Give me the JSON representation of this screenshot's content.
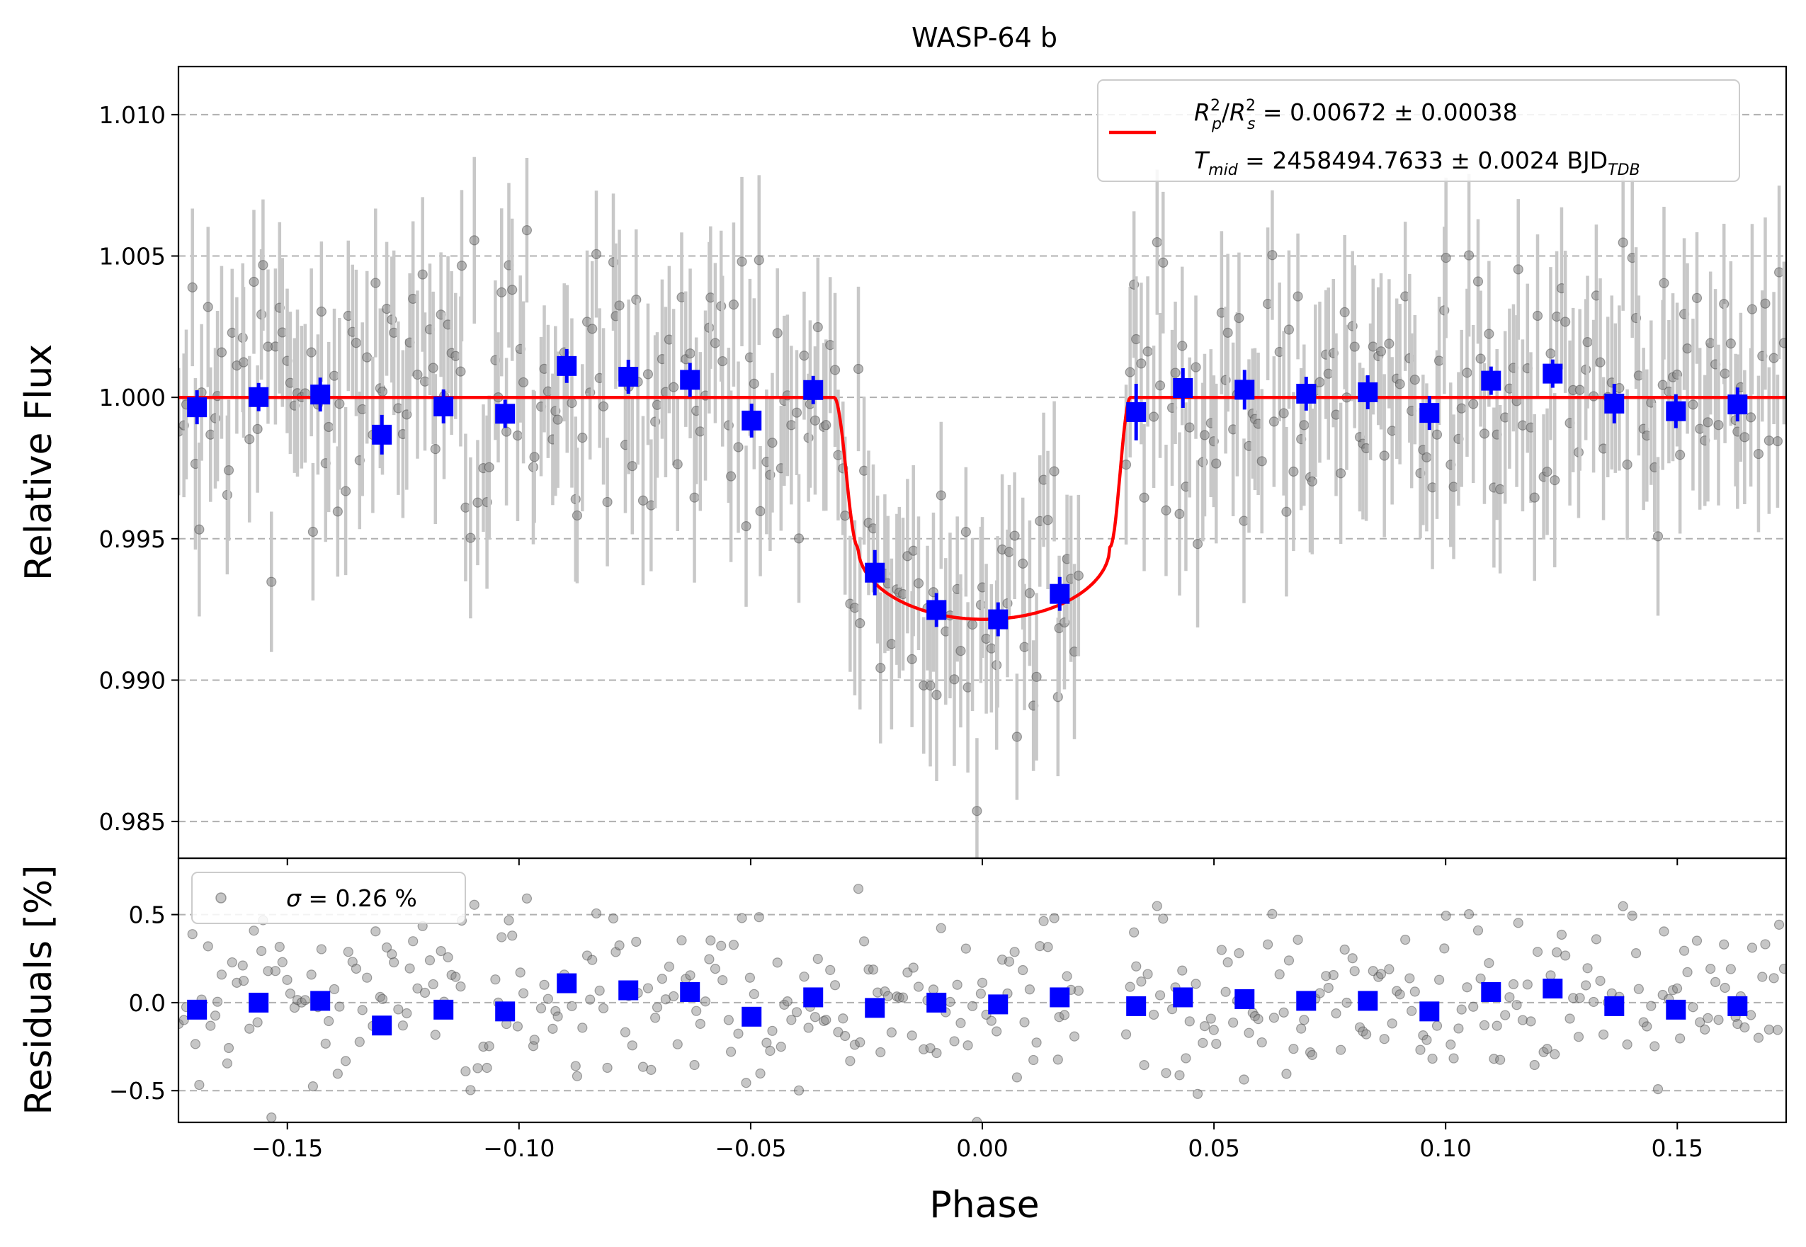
{
  "chart_data": [
    {
      "type": "scatter",
      "panel": "light-curve",
      "title": "WASP-64 b",
      "xlabel": "",
      "ylabel": "Relative Flux",
      "xlim": [
        -0.1735,
        0.1735
      ],
      "ylim": [
        0.9837,
        1.0117
      ],
      "xticks": [
        -0.15,
        -0.1,
        -0.05,
        0.0,
        0.05,
        0.1,
        0.15
      ],
      "yticks": [
        0.985,
        0.99,
        0.995,
        1.0,
        1.005,
        1.01
      ],
      "ytick_labels": [
        "0.985",
        "0.990",
        "0.995",
        "1.000",
        "1.005",
        "1.010"
      ],
      "grid": "horizontal dashed",
      "legend": {
        "placement": "top-right",
        "line_label_1": "R²p/R²s = 0.00672 ± 0.00038",
        "line_label_2": "Tmid = 2458494.7633 ± 0.0024 BJDTDB",
        "rp_base": "R",
        "rp_sup": "2",
        "rp_sub": "p",
        "slash": "/",
        "rs_base": "R",
        "rs_sup": "2",
        "rs_sub": "s",
        "rp_value": " = 0.00672 ± 0.00038",
        "tmid_base": "T",
        "tmid_sub": "mid",
        "tmid_value": " = 2458494.7633 ± 0.0024 BJD",
        "tmid_unit_sub": "TDB"
      },
      "model": {
        "name": "transit model",
        "color": "#ff0000",
        "baseline": 1.0,
        "depth_minimum": 0.99215,
        "ingress_start": -0.032,
        "ingress_end": -0.0268,
        "egress_start": 0.0275,
        "egress_end": 0.032
      },
      "binned": {
        "name": "binned data",
        "color": "#0000ff",
        "x": [
          -0.1695,
          -0.1562,
          -0.1429,
          -0.1296,
          -0.1163,
          -0.103,
          -0.0897,
          -0.0764,
          -0.0631,
          -0.0498,
          -0.0365,
          -0.0232,
          -0.0099,
          0.0034,
          0.0167,
          0.0332,
          0.0433,
          0.0566,
          0.0699,
          0.0832,
          0.0965,
          0.1098,
          0.1231,
          0.1364,
          0.1497,
          0.163
        ],
        "y": [
          0.99965,
          1.00001,
          1.0001,
          0.99868,
          0.99968,
          0.99942,
          1.00111,
          1.00073,
          1.00062,
          0.99918,
          1.00026,
          0.9938,
          0.99248,
          0.99215,
          0.99305,
          0.99948,
          1.00033,
          1.00027,
          1.00013,
          1.00018,
          0.99945,
          1.00059,
          1.00084,
          0.99978,
          0.99951,
          0.99975
        ],
        "yerr": [
          0.0006,
          0.0005,
          0.0006,
          0.0007,
          0.0006,
          0.0005,
          0.0006,
          0.0006,
          0.0006,
          0.0006,
          0.0005,
          0.0008,
          0.0006,
          0.0006,
          0.0006,
          0.001,
          0.0007,
          0.0007,
          0.0006,
          0.0006,
          0.0006,
          0.0005,
          0.0005,
          0.0007,
          0.0006,
          0.0006
        ]
      },
      "raw": {
        "name": "unbinned data",
        "color": "#808080",
        "note": "approximately 420 unbinned points, x from -0.1735 to 0.1735, typical error 0.0026, scatter sigma 0.26 %, no points between phase 0.0215 and 0.0310"
      }
    },
    {
      "type": "scatter",
      "panel": "residuals",
      "xlabel": "Phase",
      "ylabel": "Residuals [%]",
      "xlim": [
        -0.1735,
        0.1735
      ],
      "ylim": [
        -0.68,
        0.82
      ],
      "xticks": [
        -0.15,
        -0.1,
        -0.05,
        0.0,
        0.05,
        0.1,
        0.15
      ],
      "xtick_labels": [
        "−0.15",
        "−0.10",
        "−0.05",
        "0.00",
        "0.05",
        "0.10",
        "0.15"
      ],
      "yticks": [
        -0.5,
        0.0,
        0.5
      ],
      "ytick_labels": [
        "−0.5",
        "0.0",
        "0.5"
      ],
      "grid": "horizontal dashed",
      "legend": {
        "placement": "top-left",
        "label": "σ = 0.26 %",
        "sigma_symbol": "σ",
        "sigma_value": " = 0.26 %"
      },
      "binned": {
        "color": "#0000ff",
        "x": [
          -0.1695,
          -0.1562,
          -0.1429,
          -0.1296,
          -0.1163,
          -0.103,
          -0.0897,
          -0.0764,
          -0.0631,
          -0.0498,
          -0.0365,
          -0.0232,
          -0.0099,
          0.0034,
          0.0167,
          0.0332,
          0.0433,
          0.0566,
          0.0699,
          0.0832,
          0.0965,
          0.1098,
          0.1231,
          0.1364,
          0.1497,
          0.163
        ],
        "y": [
          -0.04,
          0.0,
          0.01,
          -0.13,
          -0.04,
          -0.05,
          0.11,
          0.07,
          0.06,
          -0.08,
          0.03,
          -0.03,
          0.0,
          -0.01,
          0.03,
          -0.02,
          0.03,
          0.02,
          0.01,
          0.01,
          -0.05,
          0.06,
          0.08,
          -0.02,
          -0.04,
          -0.02
        ]
      },
      "raw": {
        "color": "#808080",
        "note": "same unbinned points as the light curve, residual values within about -0.6 to 0.8 %"
      }
    }
  ]
}
